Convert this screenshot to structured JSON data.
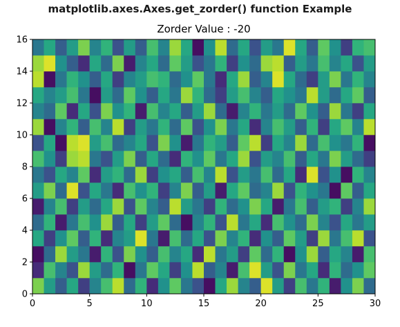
{
  "figure": {
    "suptitle": "matplotlib.axes.Axes.get_zorder() function Example"
  },
  "chart_data": {
    "type": "heatmap",
    "title": "Zorder Value : -20",
    "xlabel": "",
    "ylabel": "",
    "xlim": [
      0,
      30
    ],
    "ylim": [
      0,
      16
    ],
    "x_ticks": [
      0,
      5,
      10,
      15,
      20,
      25,
      30
    ],
    "y_ticks": [
      0,
      2,
      4,
      6,
      8,
      10,
      12,
      14,
      16
    ],
    "cell_size": 1,
    "colormap": "viridis",
    "value_range": [
      0,
      1
    ],
    "grid": false,
    "rows_from_bottom": [
      [
        0.8,
        0.55,
        0.3,
        0.6,
        0.2,
        0.45,
        0.7,
        0.9,
        0.35,
        0.65,
        0.15,
        0.5,
        0.75,
        0.4,
        0.25,
        0.05,
        0.6,
        0.85,
        0.45,
        0.3,
        0.95,
        0.55,
        0.2,
        0.7,
        0.4,
        0.65,
        0.1,
        0.5,
        0.8,
        0.35
      ],
      [
        0.15,
        0.7,
        0.45,
        0.25,
        0.85,
        0.55,
        0.35,
        0.65,
        0.05,
        0.4,
        0.75,
        0.6,
        0.2,
        0.5,
        0.9,
        0.3,
        0.45,
        0.1,
        0.7,
        0.95,
        0.55,
        0.25,
        0.8,
        0.4,
        0.6,
        0.15,
        0.65,
        0.35,
        0.5,
        0.75
      ],
      [
        0.05,
        0.35,
        0.85,
        0.55,
        0.4,
        0.1,
        0.65,
        0.25,
        0.8,
        0.5,
        0.3,
        0.7,
        0.45,
        0.6,
        0.15,
        0.9,
        0.4,
        0.55,
        0.2,
        0.75,
        0.35,
        0.65,
        0.05,
        0.5,
        0.85,
        0.3,
        0.6,
        0.45,
        0.1,
        0.7
      ],
      [
        0.6,
        0.2,
        0.5,
        0.75,
        0.3,
        0.65,
        0.15,
        0.45,
        0.55,
        0.95,
        0.4,
        0.1,
        0.7,
        0.35,
        0.6,
        0.25,
        0.8,
        0.45,
        0.65,
        0.15,
        0.5,
        0.3,
        0.75,
        0.55,
        0.2,
        0.85,
        0.4,
        0.7,
        0.9,
        0.25
      ],
      [
        0.35,
        0.65,
        0.1,
        0.4,
        0.7,
        0.5,
        0.85,
        0.3,
        0.6,
        0.2,
        0.55,
        0.75,
        0.35,
        0.05,
        0.45,
        0.65,
        0.25,
        0.9,
        0.4,
        0.6,
        0.15,
        0.7,
        0.5,
        0.35,
        0.8,
        0.45,
        0.25,
        0.6,
        0.4,
        0.55
      ],
      [
        0.1,
        0.45,
        0.7,
        0.2,
        0.55,
        0.35,
        0.6,
        0.85,
        0.25,
        0.75,
        0.45,
        0.3,
        0.9,
        0.55,
        0.4,
        0.2,
        0.65,
        0.35,
        0.5,
        0.8,
        0.6,
        0.1,
        0.4,
        0.7,
        0.3,
        0.55,
        0.65,
        0.2,
        0.45,
        0.85
      ],
      [
        0.55,
        0.8,
        0.35,
        0.95,
        0.25,
        0.6,
        0.4,
        0.15,
        0.7,
        0.5,
        0.65,
        0.2,
        0.45,
        0.8,
        0.3,
        0.55,
        0.1,
        0.6,
        0.75,
        0.35,
        0.45,
        0.85,
        0.25,
        0.65,
        0.5,
        0.4,
        0.05,
        0.75,
        0.3,
        0.6
      ],
      [
        0.4,
        0.25,
        0.6,
        0.45,
        0.75,
        0.15,
        0.55,
        0.65,
        0.35,
        0.85,
        0.2,
        0.5,
        0.6,
        0.3,
        0.7,
        0.45,
        0.9,
        0.25,
        0.55,
        0.4,
        0.7,
        0.35,
        0.6,
        0.15,
        0.95,
        0.25,
        0.5,
        0.05,
        0.65,
        0.45
      ],
      [
        0.7,
        0.5,
        0.2,
        0.85,
        0.9,
        0.4,
        0.25,
        0.55,
        0.8,
        0.3,
        0.6,
        0.35,
        0.15,
        0.65,
        0.5,
        0.75,
        0.4,
        0.6,
        0.85,
        0.25,
        0.55,
        0.45,
        0.7,
        0.3,
        0.6,
        0.4,
        0.8,
        0.55,
        0.35,
        0.2
      ],
      [
        0.25,
        0.6,
        0.05,
        0.9,
        0.95,
        0.55,
        0.7,
        0.35,
        0.45,
        0.6,
        0.25,
        0.8,
        0.5,
        0.1,
        0.4,
        0.65,
        0.55,
        0.3,
        0.75,
        0.9,
        0.2,
        0.6,
        0.45,
        0.85,
        0.35,
        0.7,
        0.5,
        0.4,
        0.65,
        0.05
      ],
      [
        0.85,
        0.05,
        0.45,
        0.65,
        0.3,
        0.7,
        0.45,
        0.9,
        0.2,
        0.55,
        0.4,
        0.65,
        0.35,
        0.75,
        0.25,
        0.5,
        0.8,
        0.4,
        0.6,
        0.15,
        0.45,
        0.7,
        0.55,
        0.3,
        0.65,
        0.2,
        0.6,
        0.75,
        0.45,
        0.9
      ],
      [
        0.45,
        0.35,
        0.75,
        0.15,
        0.6,
        0.25,
        0.8,
        0.5,
        0.65,
        0.1,
        0.7,
        0.45,
        0.6,
        0.3,
        0.55,
        0.85,
        0.35,
        0.1,
        0.45,
        0.65,
        0.4,
        0.55,
        0.35,
        0.75,
        0.5,
        0.3,
        0.85,
        0.4,
        0.2,
        0.6
      ],
      [
        0.6,
        0.45,
        0.55,
        0.7,
        0.4,
        0.05,
        0.55,
        0.35,
        0.75,
        0.5,
        0.3,
        0.6,
        0.4,
        0.85,
        0.65,
        0.35,
        0.2,
        0.55,
        0.7,
        0.45,
        0.3,
        0.6,
        0.5,
        0.4,
        0.9,
        0.55,
        0.35,
        0.6,
        0.75,
        0.3
      ],
      [
        0.9,
        0.05,
        0.4,
        0.65,
        0.5,
        0.3,
        0.6,
        0.2,
        0.45,
        0.55,
        0.7,
        0.65,
        0.35,
        0.5,
        0.75,
        0.4,
        0.15,
        0.6,
        0.85,
        0.3,
        0.45,
        0.95,
        0.6,
        0.35,
        0.2,
        0.55,
        0.8,
        0.4,
        0.65,
        0.45
      ],
      [
        0.85,
        0.95,
        0.5,
        0.3,
        0.15,
        0.6,
        0.35,
        0.8,
        0.1,
        0.45,
        0.6,
        0.35,
        0.75,
        0.55,
        0.25,
        0.4,
        0.65,
        0.2,
        0.5,
        0.35,
        0.85,
        0.9,
        0.3,
        0.55,
        0.4,
        0.7,
        0.45,
        0.6,
        0.25,
        0.55
      ],
      [
        0.4,
        0.6,
        0.3,
        0.55,
        0.8,
        0.45,
        0.65,
        0.25,
        0.55,
        0.3,
        0.7,
        0.45,
        0.85,
        0.6,
        0.05,
        0.5,
        0.9,
        0.35,
        0.6,
        0.25,
        0.55,
        0.4,
        0.95,
        0.6,
        0.3,
        0.75,
        0.5,
        0.2,
        0.65,
        0.7
      ]
    ]
  }
}
